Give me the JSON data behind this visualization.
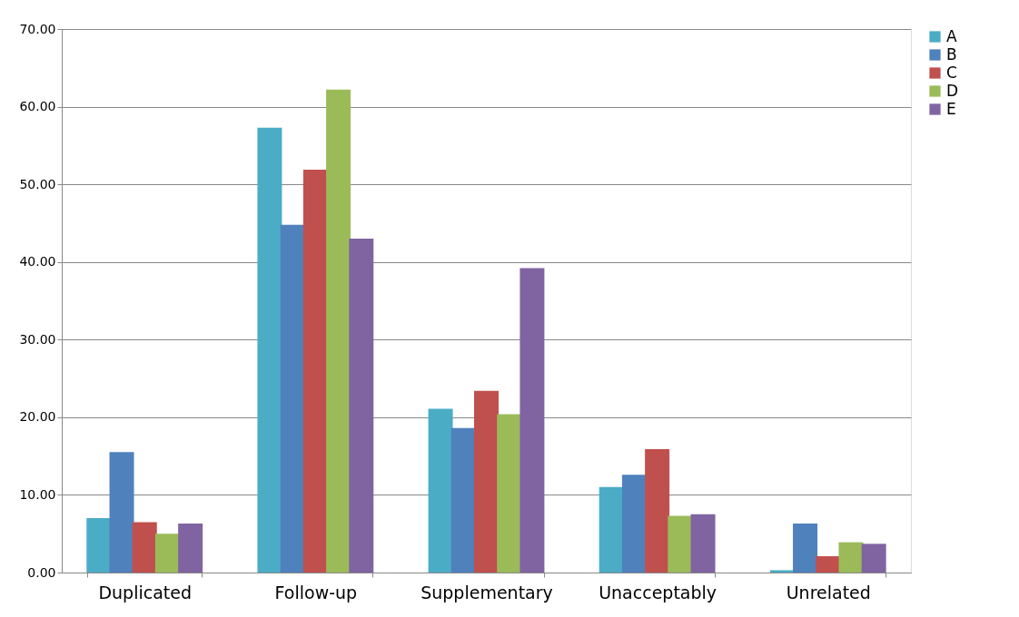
{
  "chart_data": {
    "type": "bar",
    "categories": [
      "Duplicated",
      "Follow-up",
      "Supplementary",
      "Unacceptably",
      "Unrelated"
    ],
    "series": [
      {
        "name": "A",
        "color": "#4bacc6",
        "values": [
          7.0,
          57.3,
          21.1,
          11.0,
          0.3
        ]
      },
      {
        "name": "B",
        "color": "#4f81bd",
        "values": [
          15.5,
          44.8,
          18.6,
          12.6,
          6.3
        ]
      },
      {
        "name": "C",
        "color": "#c0504d",
        "values": [
          6.5,
          51.9,
          23.4,
          15.9,
          2.1
        ]
      },
      {
        "name": "D",
        "color": "#9bbb59",
        "values": [
          5.0,
          62.2,
          20.4,
          7.3,
          3.9
        ]
      },
      {
        "name": "E",
        "color": "#8064a2",
        "values": [
          6.3,
          43.0,
          39.2,
          7.5,
          3.7
        ]
      }
    ],
    "ylim": [
      0,
      70
    ],
    "yticks": [
      {
        "value": 0,
        "label": "0.00"
      },
      {
        "value": 10,
        "label": "10.00"
      },
      {
        "value": 20,
        "label": "20.00"
      },
      {
        "value": 30,
        "label": "30.00"
      },
      {
        "value": 40,
        "label": "40.00"
      },
      {
        "value": 50,
        "label": "50.00"
      },
      {
        "value": 60,
        "label": "60.00"
      },
      {
        "value": 70,
        "label": "70.00"
      }
    ],
    "grid": "y",
    "legend": "right"
  }
}
